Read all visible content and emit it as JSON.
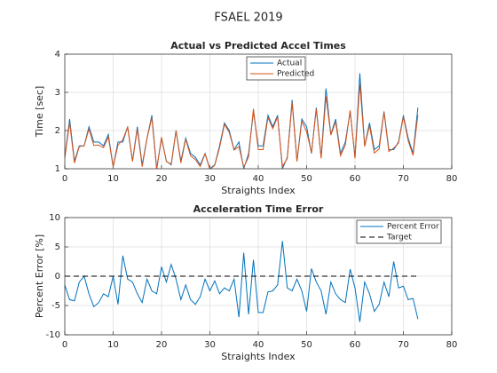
{
  "title": "FSAEL 2019",
  "chart_data": [
    {
      "type": "line",
      "title": "Actual vs Predicted Accel Times",
      "xlabel": "Straights Index",
      "ylabel": "Time [sec]",
      "x": [
        0,
        1,
        2,
        3,
        4,
        5,
        6,
        7,
        8,
        9,
        10,
        11,
        12,
        13,
        14,
        15,
        16,
        17,
        18,
        19,
        20,
        21,
        22,
        23,
        24,
        25,
        26,
        27,
        28,
        29,
        30,
        31,
        32,
        33,
        34,
        35,
        36,
        37,
        38,
        39,
        40,
        41,
        42,
        43,
        44,
        45,
        46,
        47,
        48,
        49,
        50,
        51,
        52,
        53,
        54,
        55,
        56,
        57,
        58,
        59,
        60,
        61,
        62,
        63,
        64,
        65,
        66,
        67,
        68,
        69,
        70,
        71,
        72,
        73
      ],
      "series": [
        {
          "name": "Actual",
          "color": "#0072bd",
          "linestyle": "solid",
          "values": [
            1.3,
            2.3,
            1.2,
            1.6,
            1.6,
            2.1,
            1.7,
            1.7,
            1.6,
            1.9,
            1.05,
            1.7,
            1.7,
            2.1,
            1.2,
            2.1,
            1.1,
            1.8,
            2.4,
            1.0,
            1.8,
            1.2,
            1.1,
            2.0,
            1.2,
            1.8,
            1.4,
            1.3,
            1.1,
            1.4,
            1.0,
            1.1,
            1.6,
            2.2,
            2.0,
            1.5,
            1.7,
            1.0,
            1.4,
            2.5,
            1.6,
            1.6,
            2.4,
            2.1,
            2.4,
            1.0,
            1.3,
            2.8,
            1.2,
            2.3,
            2.1,
            1.4,
            2.6,
            1.3,
            3.1,
            1.9,
            2.3,
            1.4,
            1.7,
            2.5,
            1.3,
            3.5,
            1.6,
            2.2,
            1.5,
            1.6,
            2.5,
            1.5,
            1.5,
            1.7,
            2.4,
            1.8,
            1.4,
            2.6
          ]
        },
        {
          "name": "Predicted",
          "color": "#d95319",
          "linestyle": "solid",
          "values": [
            1.28,
            2.21,
            1.15,
            1.58,
            1.6,
            2.04,
            1.61,
            1.62,
            1.55,
            1.83,
            1.05,
            1.62,
            1.76,
            2.09,
            1.19,
            2.04,
            1.05,
            1.79,
            2.34,
            0.97,
            1.83,
            1.19,
            1.12,
            1.99,
            1.15,
            1.77,
            1.34,
            1.24,
            1.06,
            1.39,
            0.98,
            1.09,
            1.55,
            2.16,
            1.95,
            1.49,
            1.58,
            1.04,
            1.31,
            2.57,
            1.5,
            1.5,
            2.34,
            2.05,
            2.36,
            1.06,
            1.27,
            2.73,
            1.19,
            2.24,
            1.97,
            1.42,
            2.57,
            1.27,
            2.9,
            1.88,
            2.23,
            1.34,
            1.62,
            2.53,
            1.27,
            3.23,
            1.58,
            2.13,
            1.41,
            1.52,
            2.48,
            1.45,
            1.54,
            1.67,
            2.36,
            1.73,
            1.35,
            2.41
          ]
        }
      ],
      "xlim": [
        0,
        80
      ],
      "xticks": [
        0,
        10,
        20,
        30,
        40,
        50,
        60,
        70,
        80
      ],
      "ylim": [
        1,
        4
      ],
      "yticks": [
        1,
        2,
        3,
        4
      ],
      "grid": true,
      "legend": "north"
    },
    {
      "type": "line",
      "title": "Acceleration Time Error",
      "xlabel": "Straights Index",
      "ylabel": "Percent Error [%]",
      "x": [
        0,
        1,
        2,
        3,
        4,
        5,
        6,
        7,
        8,
        9,
        10,
        11,
        12,
        13,
        14,
        15,
        16,
        17,
        18,
        19,
        20,
        21,
        22,
        23,
        24,
        25,
        26,
        27,
        28,
        29,
        30,
        31,
        32,
        33,
        34,
        35,
        36,
        37,
        38,
        39,
        40,
        41,
        42,
        43,
        44,
        45,
        46,
        47,
        48,
        49,
        50,
        51,
        52,
        53,
        54,
        55,
        56,
        57,
        58,
        59,
        60,
        61,
        62,
        63,
        64,
        65,
        66,
        67,
        68,
        69,
        70,
        71,
        72,
        73
      ],
      "series": [
        {
          "name": "Percent Error",
          "color": "#0072bd",
          "linestyle": "solid",
          "values": [
            -1.5,
            -4,
            -4.2,
            -1,
            0,
            -3,
            -5.2,
            -4.5,
            -3,
            -3.5,
            0,
            -4.8,
            3.5,
            -0.5,
            -1,
            -3,
            -4.5,
            -0.5,
            -2.5,
            -3,
            1.6,
            -1,
            2,
            -0.5,
            -4,
            -1.5,
            -4,
            -4.8,
            -3.5,
            -0.5,
            -2.5,
            -0.8,
            -3,
            -2,
            -2.5,
            -0.5,
            -7,
            4,
            -6.5,
            2.8,
            -6.2,
            -6.2,
            -2.7,
            -2.5,
            -1.5,
            6,
            -2,
            -2.5,
            -0.5,
            -2.5,
            -6,
            1.3,
            -1,
            -2.5,
            -6.5,
            -1,
            -3,
            -4,
            -4.5,
            1.2,
            -2,
            -7.8,
            -1,
            -3,
            -6,
            -4.8,
            -1,
            -3.5,
            2.5,
            -2,
            -1.7,
            -4,
            -3.8,
            -7.3
          ]
        },
        {
          "name": "Target",
          "color": "#000000",
          "linestyle": "dashed",
          "x": [
            0,
            73
          ],
          "values": [
            0,
            0
          ]
        }
      ],
      "xlim": [
        0,
        80
      ],
      "xticks": [
        0,
        10,
        20,
        30,
        40,
        50,
        60,
        70,
        80
      ],
      "ylim": [
        -10,
        10
      ],
      "yticks": [
        -10,
        -5,
        0,
        5,
        10
      ],
      "grid": true,
      "legend": "northeast"
    }
  ]
}
